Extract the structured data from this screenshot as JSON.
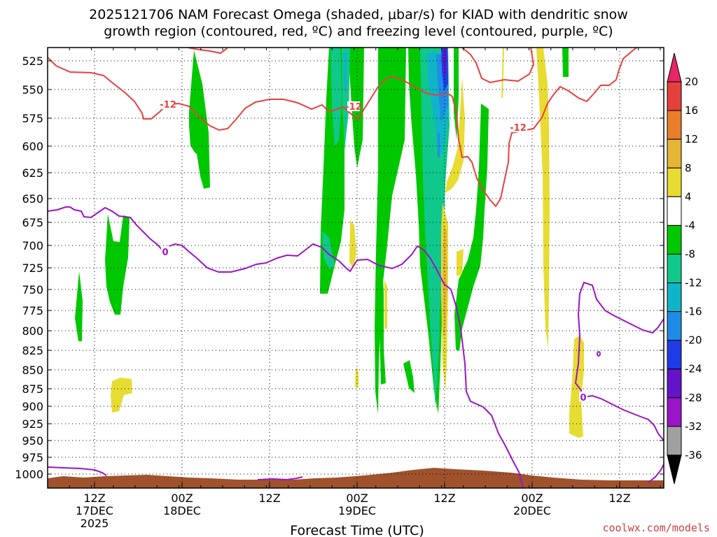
{
  "chart_data": {
    "type": "heatmap",
    "title_line1": "2025121706 NAM Forecast Omega (shaded, μbar/s) for KIAD with dendritic snow",
    "title_line2": "growth region (contoured, red, ºC) and freezing level (contoured, purple, ºC)",
    "xlabel": "Forecast Time (UTC)",
    "credit": "coolwx.com/models",
    "y_ticks": [
      "525",
      "550",
      "575",
      "600",
      "625",
      "650",
      "675",
      "700",
      "725",
      "750",
      "775",
      "800",
      "825",
      "850",
      "875",
      "900",
      "925",
      "950",
      "975",
      "1000"
    ],
    "x_ticks": [
      {
        "label1": "12Z",
        "label2": "17DEC",
        "label3": "2025"
      },
      {
        "label1": "00Z",
        "label2": "18DEC",
        "label3": ""
      },
      {
        "label1": "12Z",
        "label2": "",
        "label3": ""
      },
      {
        "label1": "00Z",
        "label2": "19DEC",
        "label3": ""
      },
      {
        "label1": "12Z",
        "label2": "",
        "label3": ""
      },
      {
        "label1": "00Z",
        "label2": "20DEC",
        "label3": ""
      },
      {
        "label1": "12Z",
        "label2": "",
        "label3": ""
      }
    ],
    "colorbar": {
      "labels": [
        "20",
        "16",
        "12",
        "8",
        "4",
        "-4",
        "-8",
        "-12",
        "-16",
        "-20",
        "-24",
        "-28",
        "-32",
        "-36"
      ],
      "colors": [
        "#e8246a",
        "#e6403c",
        "#e97e2c",
        "#e6b436",
        "#e6dc32",
        "#ffffff",
        "#00c800",
        "#10c88c",
        "#10b4c8",
        "#1e8ce6",
        "#1e3ce6",
        "#6414c8",
        "#9b14c8",
        "#a0a0a0",
        "#000000"
      ]
    },
    "contour_labels": {
      "dgz": "-12",
      "freezing": "0"
    },
    "colors": {
      "dgz_line": "#e84040",
      "freezing_line": "#9b14c8",
      "terrain": "#a0522d"
    }
  }
}
